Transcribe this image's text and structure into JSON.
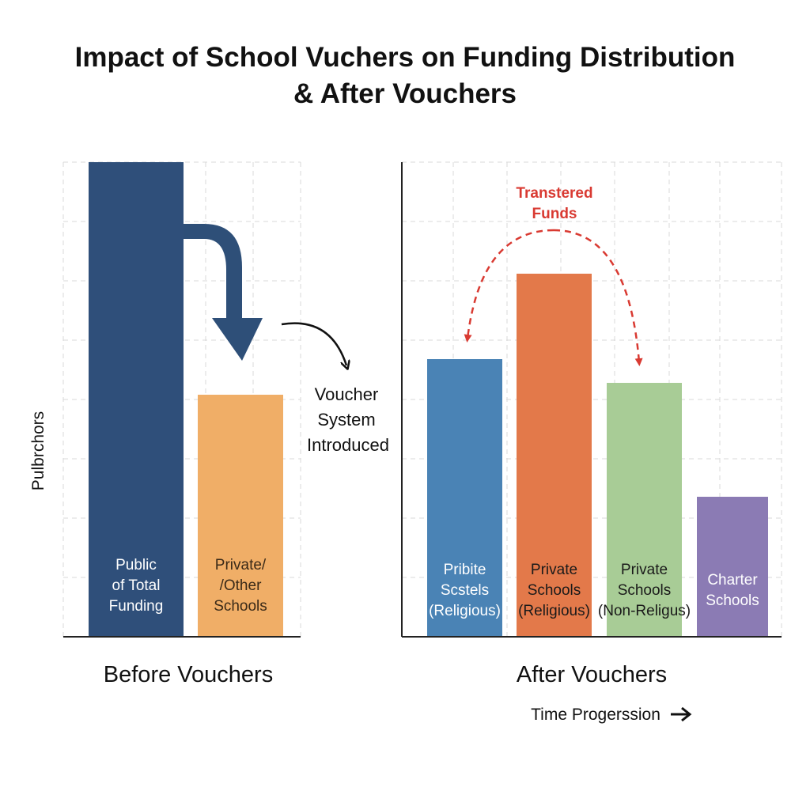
{
  "title_lines": [
    "Impact of School Vuchers on Funding Distribution",
    "& After Vouchers"
  ],
  "colors": {
    "public": "#2f4f7a",
    "private_other": "#f0ae67",
    "private_religious_blue": "#4a83b5",
    "private_religious_orange": "#e3794a",
    "private_non_religious": "#a8cc96",
    "charter": "#8b7bb4",
    "transfer_arrow": "#d93a32",
    "flow_arrow": "#2e4f78"
  },
  "chart_data": [
    {
      "type": "bar",
      "panel": "before",
      "title": "",
      "xlabel": "Before Vouchers",
      "ylabel": "Pulbrchors",
      "categories": [
        [
          "Public",
          "of Total",
          "Funding"
        ],
        [
          "Private/",
          "/Other",
          "Schools"
        ]
      ],
      "values": [
        100,
        51
      ],
      "colors": [
        "#2f4f7a",
        "#f0ae67"
      ],
      "ylim": [
        0,
        100
      ],
      "grid": true,
      "annotation": [
        "Voucher",
        "System",
        "Introduced"
      ]
    },
    {
      "type": "bar",
      "panel": "after",
      "title": "",
      "xlabel": "After Vouchers",
      "categories": [
        [
          "Pribite",
          "Scstels",
          "(Religious)"
        ],
        [
          "Private",
          "Schools",
          "(Religious)"
        ],
        [
          "Private",
          "Schools",
          "(Non-Religus)"
        ],
        [
          "Charter",
          "Schools"
        ]
      ],
      "values": [
        58.5,
        76.5,
        53.5,
        29.5
      ],
      "colors": [
        "#4a83b5",
        "#e3794a",
        "#a8cc96",
        "#8b7bb4"
      ],
      "ylim": [
        0,
        100
      ],
      "grid": true,
      "annotation": [
        "Transtered",
        "Funds"
      ],
      "footnote": "Time Progerssion"
    }
  ]
}
